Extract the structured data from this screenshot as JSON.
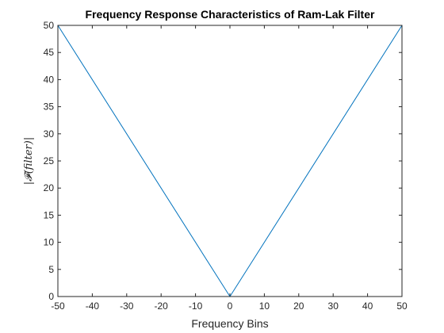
{
  "chart_data": {
    "type": "line",
    "title": "Frequency Response Characteristics of Ram-Lak Filter",
    "xlabel": "Frequency Bins",
    "ylabel": "|𝓕(filter)|",
    "xlim": [
      -50,
      50
    ],
    "ylim": [
      0,
      50
    ],
    "xticks": [
      -50,
      -40,
      -30,
      -20,
      -10,
      0,
      10,
      20,
      30,
      40,
      50
    ],
    "yticks": [
      0,
      5,
      10,
      15,
      20,
      25,
      30,
      35,
      40,
      45,
      50
    ],
    "grid": false,
    "legend": "none",
    "series": [
      {
        "color": "#0072BD",
        "x": [
          -50,
          0,
          50
        ],
        "y": [
          50,
          0,
          50
        ]
      }
    ]
  }
}
